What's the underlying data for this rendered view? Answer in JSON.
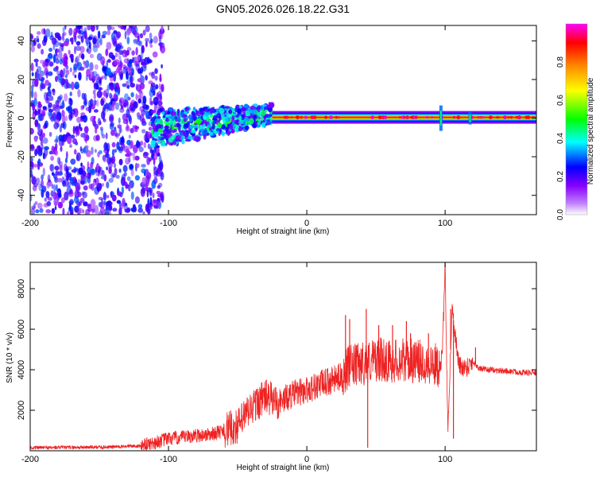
{
  "chart_data": [
    {
      "type": "heatmap",
      "title": "GN05.2026.026.18.22.G31",
      "xlabel": "Height of straight line (km)",
      "ylabel": "Frequency (Hz)",
      "xlim": [
        -200,
        166
      ],
      "ylim": [
        -50,
        48
      ],
      "xticks": [
        -200,
        -100,
        0,
        100
      ],
      "xtick_labels": [
        "-200",
        "-100",
        "0",
        "100"
      ],
      "yticks": [
        40,
        20,
        0,
        -20,
        -40
      ],
      "ytick_labels": [
        "40",
        "20",
        "0",
        "-20",
        "-40"
      ],
      "colorbar": {
        "label": "Normalized spectral amplitude",
        "range": [
          0,
          1
        ],
        "ticks": [
          0.0,
          0.2,
          0.4,
          0.6,
          0.8
        ],
        "tick_labels": [
          "0.0",
          "0.2",
          "0.4",
          "0.6",
          "0.8"
        ],
        "colormap": [
          "#ffffff",
          "#8800ff",
          "#0000ff",
          "#00ffff",
          "#00ff00",
          "#ffff00",
          "#ff8800",
          "#ff0000",
          "#ff00ff"
        ]
      },
      "regions": [
        {
          "name": "noise",
          "x_range": [
            -200,
            -112
          ],
          "f_range": [
            -50,
            48
          ],
          "amplitude": 0.12
        },
        {
          "name": "onset",
          "x_range": [
            -112,
            -25
          ],
          "f_range": [
            -12,
            12
          ],
          "amplitude": 0.35
        },
        {
          "name": "carrier",
          "x_range": [
            -25,
            166
          ],
          "f_center": 0,
          "f_width": 3,
          "amplitude": 0.95
        }
      ],
      "spike_heights_km": [
        97,
        118
      ]
    },
    {
      "type": "line",
      "xlabel": "Height of straight line (km)",
      "ylabel": "SNR (10 * v/v)",
      "xlim": [
        -200,
        166
      ],
      "ylim": [
        0,
        9300
      ],
      "xticks": [
        -200,
        -100,
        0,
        100
      ],
      "xtick_labels": [
        "-200",
        "-100",
        "0",
        "100"
      ],
      "yticks": [
        2000,
        4000,
        6000,
        8000
      ],
      "ytick_labels": [
        "2000",
        "4000",
        "6000",
        "8000"
      ],
      "color": "#ee2222",
      "series": [
        {
          "name": "SNR",
          "x": [
            -200,
            -180,
            -160,
            -140,
            -120,
            -110,
            -100,
            -90,
            -80,
            -70,
            -60,
            -50,
            -45,
            -40,
            -35,
            -30,
            -25,
            -20,
            -10,
            0,
            10,
            20,
            25,
            30,
            35,
            40,
            45,
            50,
            55,
            60,
            70,
            80,
            85,
            90,
            95,
            98,
            100,
            102,
            105,
            110,
            115,
            120,
            125,
            130,
            140,
            150,
            160,
            166
          ],
          "y": [
            150,
            160,
            170,
            190,
            250,
            400,
            600,
            650,
            750,
            800,
            1000,
            1200,
            1700,
            2100,
            2400,
            2700,
            2500,
            2400,
            2800,
            3000,
            3300,
            3500,
            3700,
            4100,
            4200,
            4300,
            4400,
            4500,
            4500,
            4400,
            4500,
            4400,
            4400,
            4300,
            4200,
            4600,
            9200,
            1000,
            7000,
            4200,
            4100,
            4400,
            4050,
            4000,
            3950,
            3900,
            3850,
            3850
          ]
        }
      ],
      "spikes": [
        {
          "x": 28,
          "y": 6700
        },
        {
          "x": 31,
          "y": 6500
        },
        {
          "x": 43,
          "y": 7000
        },
        {
          "x": 44,
          "y": 150
        },
        {
          "x": 52,
          "y": 6200
        },
        {
          "x": 62,
          "y": 6200
        },
        {
          "x": 72,
          "y": 6400
        },
        {
          "x": 75,
          "y": 5800
        },
        {
          "x": 88,
          "y": 5800
        },
        {
          "x": 100,
          "y": 9200
        },
        {
          "x": 104,
          "y": 7000
        },
        {
          "x": 106,
          "y": 600
        },
        {
          "x": 122,
          "y": 5100
        }
      ]
    }
  ]
}
